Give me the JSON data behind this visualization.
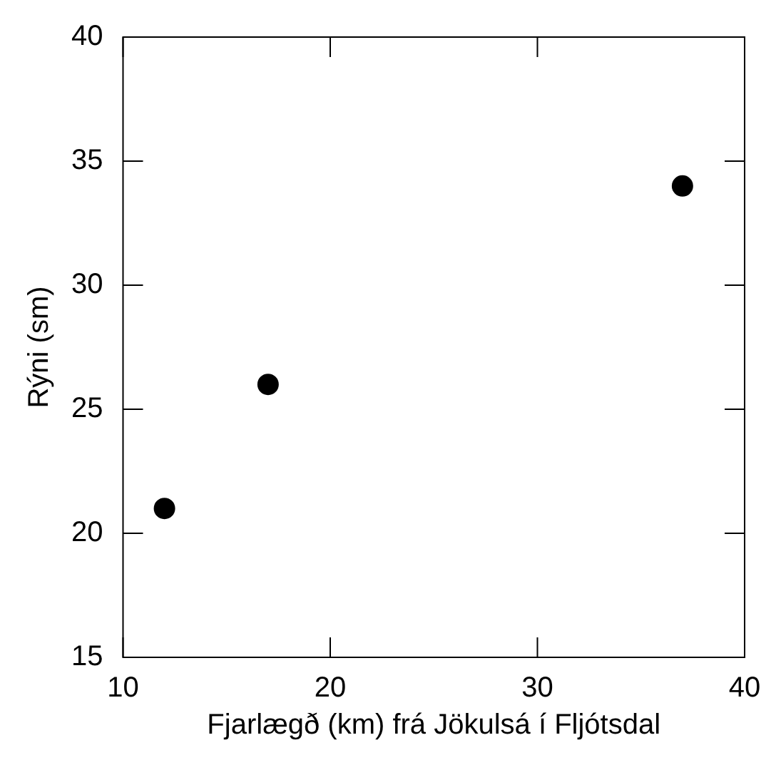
{
  "chart_data": {
    "type": "scatter",
    "xlabel": "Fjarlægð (km) frá Jökulsá í Fljótsdal",
    "ylabel": "Rýni (sm)",
    "x": [
      12,
      17,
      37
    ],
    "values": [
      21,
      26,
      34
    ],
    "color": "#000000",
    "marker": "circle",
    "xlim": [
      10,
      40
    ],
    "xticks": [
      10,
      20,
      30,
      40
    ],
    "ylim": [
      15,
      40
    ],
    "yticks": [
      15,
      20,
      25,
      30,
      35,
      40
    ]
  }
}
